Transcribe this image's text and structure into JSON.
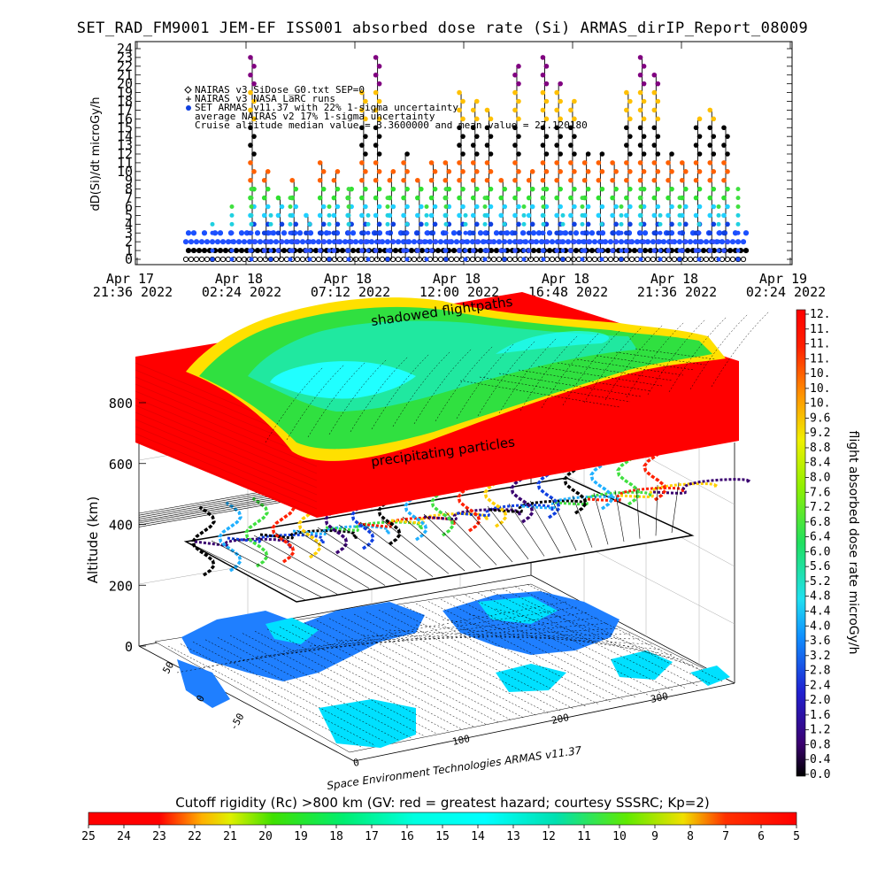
{
  "title": "SET_RAD_FM9001  JEM-EF ISS001 absorbed dose rate (Si) ARMAS_dirIP_Report_08009",
  "chart_data": [
    {
      "type": "scatter",
      "ylabel": "dD(Si)/dt microGy/h",
      "ylim": [
        0,
        24
      ],
      "yticks": [
        0,
        1,
        2,
        3,
        4,
        5,
        6,
        7,
        8,
        9,
        10,
        11,
        12,
        13,
        14,
        15,
        16,
        17,
        18,
        19,
        20,
        21,
        22,
        23,
        24
      ],
      "xticks": [
        {
          "line1": "Apr 17",
          "line2": "21:36 2022"
        },
        {
          "line1": "Apr 18",
          "line2": "02:24 2022"
        },
        {
          "line1": "Apr 18",
          "line2": "07:12 2022"
        },
        {
          "line1": "Apr 18",
          "line2": "12:00 2022"
        },
        {
          "line1": "Apr 18",
          "line2": "16:48 2022"
        },
        {
          "line1": "Apr 18",
          "line2": "21:36 2022"
        },
        {
          "line1": "Apr 19",
          "line2": "02:24 2022"
        }
      ],
      "legend": [
        "NAIRAS v3 SiDose_G0.txt SEP=0",
        "NAIRAS v3 NASA LaRC runs",
        "SET ARMAS v11.37 with 22% 1-sigma uncertainty",
        "average NAIRAS v2 17% 1-sigma uncertainty",
        "Cruise altitude median value = 3.3600000 and mean value = 27.120180"
      ],
      "baseline_levels": [
        0,
        1,
        2,
        3
      ],
      "peak_values": [
        23,
        10,
        7,
        9,
        5,
        11,
        10,
        8,
        19,
        23,
        10,
        12,
        9,
        11,
        11,
        19,
        18,
        17,
        9,
        22,
        10,
        23,
        20,
        18,
        12,
        12,
        11,
        19,
        23,
        21,
        12,
        11,
        16,
        17,
        15
      ],
      "colors": {
        "high": "#ff0000",
        "mid": "#00dd00",
        "low": "#1040e0",
        "baseline": "#000000"
      }
    },
    {
      "type": "heatmap",
      "zlabel": "Altitude (km)",
      "zticks": [
        0,
        200,
        400,
        600,
        800
      ],
      "lat_ticks": [
        "50",
        "0",
        "-50"
      ],
      "lon_ticks": [
        "0",
        "100",
        "200",
        "300"
      ],
      "annotations": [
        "shadowed flightpaths",
        "precipitating particles"
      ],
      "credit": "Space Environment Technologies ARMAS v11.37"
    },
    {
      "type": "colorbar",
      "label": "flight absorbed dose rate microGy/h",
      "ticks": [
        "12.",
        "11.",
        "11.",
        "11.",
        "10.",
        "10.",
        "10.",
        "9.6",
        "9.2",
        "8.8",
        "8.4",
        "8.0",
        "7.6",
        "7.2",
        "6.8",
        "6.4",
        "6.0",
        "5.6",
        "5.2",
        "4.8",
        "4.4",
        "4.0",
        "3.6",
        "3.2",
        "2.8",
        "2.4",
        "2.0",
        "1.6",
        "1.2",
        "0.8",
        "0.4",
        "0.0"
      ]
    },
    {
      "type": "colorbar",
      "label": "Cutoff rigidity (Rc) >800 km (GV: red = greatest hazard; courtesy SSSRC; Kp=2)",
      "ticks": [
        "25",
        "24",
        "23",
        "22",
        "21",
        "20",
        "19",
        "18",
        "17",
        "16",
        "15",
        "14",
        "13",
        "12",
        "11",
        "10",
        "9",
        "8",
        "7",
        "6",
        "5"
      ]
    }
  ]
}
